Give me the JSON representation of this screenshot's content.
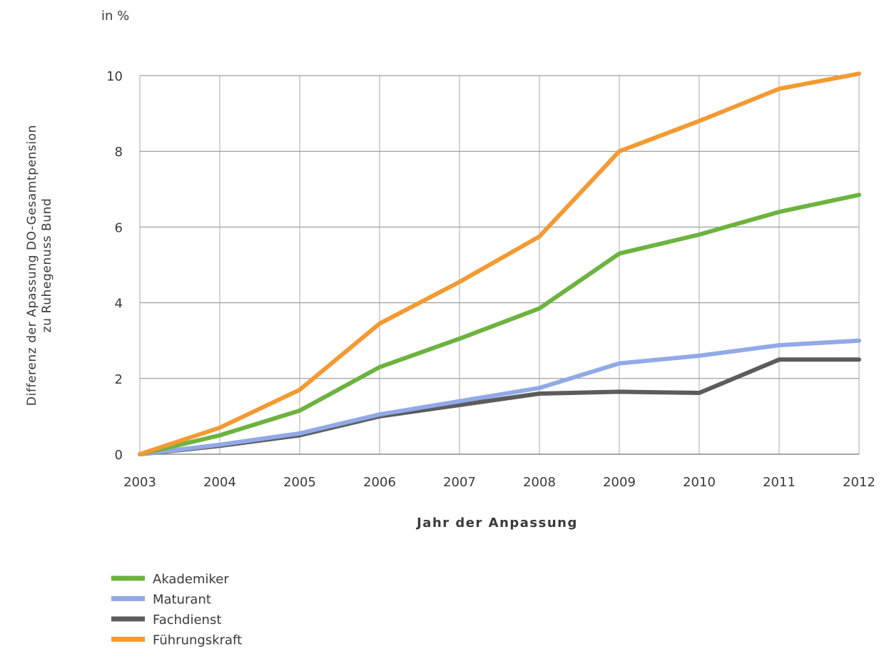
{
  "chart_data": {
    "type": "line",
    "unit": "in %",
    "xlabel": "Jahr der Anpassung",
    "ylabel_lines": [
      "Differenz der Apassung DO-Gesamtpension",
      "zu Ruhegenuss Bund"
    ],
    "x": [
      2003,
      2004,
      2005,
      2006,
      2007,
      2008,
      2009,
      2010,
      2011,
      2012
    ],
    "ylim": [
      0,
      10
    ],
    "yticks": [
      0,
      2,
      4,
      6,
      8,
      10
    ],
    "grid": true,
    "legend_position": "bottom-left",
    "series": [
      {
        "name": "Akademiker",
        "color": "#6db33f",
        "values": [
          0,
          0.5,
          1.15,
          2.3,
          3.05,
          3.85,
          5.3,
          5.8,
          6.4,
          6.85
        ]
      },
      {
        "name": "Maturant",
        "color": "#92a9e8",
        "values": [
          0,
          0.25,
          0.55,
          1.05,
          1.4,
          1.75,
          2.4,
          2.6,
          2.88,
          3.0
        ]
      },
      {
        "name": "Fachdienst",
        "color": "#5c5c5c",
        "values": [
          0,
          0.22,
          0.5,
          1.0,
          1.3,
          1.6,
          1.65,
          1.62,
          2.5,
          2.5
        ]
      },
      {
        "name": "Führungskraft",
        "color": "#f39a33",
        "values": [
          0,
          0.7,
          1.7,
          3.45,
          4.55,
          5.75,
          8.0,
          8.8,
          9.65,
          10.05
        ]
      }
    ]
  }
}
